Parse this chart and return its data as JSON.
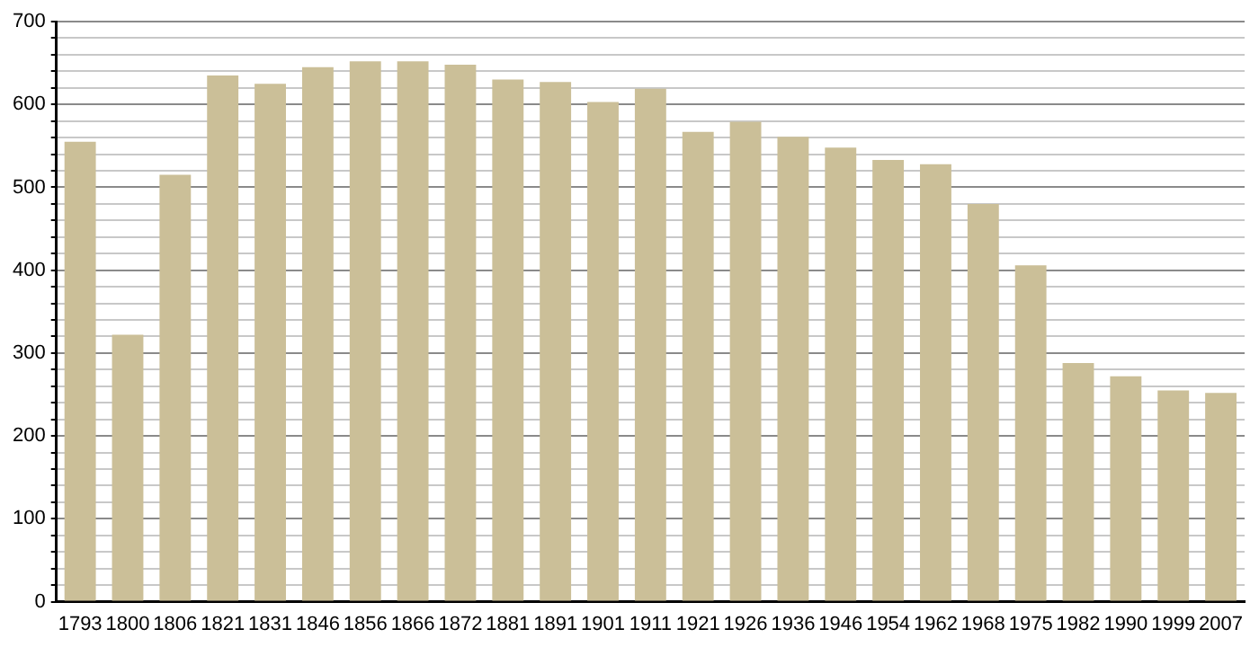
{
  "chart_data": {
    "type": "bar",
    "categories": [
      "1793",
      "1800",
      "1806",
      "1821",
      "1831",
      "1846",
      "1856",
      "1866",
      "1872",
      "1881",
      "1891",
      "1901",
      "1911",
      "1921",
      "1926",
      "1936",
      "1946",
      "1954",
      "1962",
      "1968",
      "1975",
      "1982",
      "1990",
      "1999",
      "2007"
    ],
    "values": [
      555,
      322,
      515,
      635,
      625,
      645,
      652,
      652,
      648,
      630,
      627,
      603,
      619,
      567,
      579,
      561,
      548,
      533,
      528,
      480,
      406,
      288,
      272,
      255,
      252
    ],
    "color": "#cbbf98",
    "ylim": [
      0,
      700
    ],
    "yticks": [
      0,
      {
        "value": 20,
        "label": null
      },
      {
        "value": 40,
        "label": null
      },
      {
        "value": 60,
        "label": null
      },
      {
        "value": 80,
        "label": null
      },
      100,
      {
        "value": 120,
        "label": null
      },
      {
        "value": 140,
        "label": null
      },
      {
        "value": 160,
        "label": null
      },
      {
        "value": 180,
        "label": null
      },
      200,
      {
        "value": 220,
        "label": null
      },
      {
        "value": 240,
        "label": null
      },
      {
        "value": 260,
        "label": null
      },
      {
        "value": 280,
        "label": null
      },
      300,
      {
        "value": 320,
        "label": null
      },
      {
        "value": 340,
        "label": null
      },
      {
        "value": 360,
        "label": null
      },
      {
        "value": 380,
        "label": null
      },
      400,
      {
        "value": 420,
        "label": null
      },
      {
        "value": 440,
        "label": null
      },
      {
        "value": 460,
        "label": null
      },
      {
        "value": 480,
        "label": null
      },
      500,
      {
        "value": 520,
        "label": null
      },
      {
        "value": 540,
        "label": null
      },
      {
        "value": 560,
        "label": null
      },
      {
        "value": 580,
        "label": null
      },
      600,
      {
        "value": 620,
        "label": null
      },
      {
        "value": 640,
        "label": null
      },
      {
        "value": 660,
        "label": null
      },
      {
        "value": 680,
        "label": null
      },
      700
    ],
    "grid": "y"
  }
}
